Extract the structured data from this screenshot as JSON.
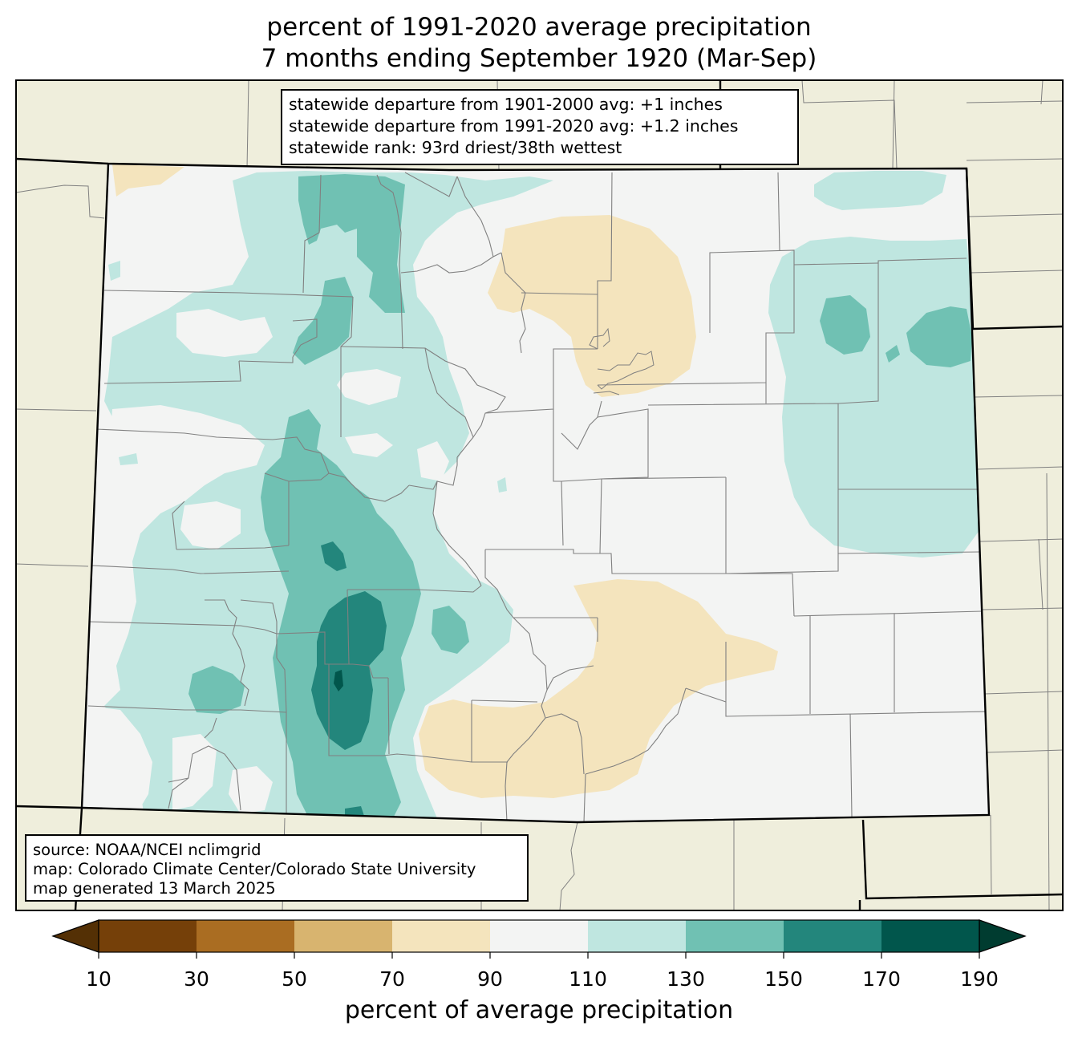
{
  "title": {
    "line1": "percent of 1991-2020 average precipitation",
    "line2": "7 months ending September 1920 (Mar-Sep)"
  },
  "stats": {
    "line1": "statewide departure from 1901-2000 avg: +1 inches",
    "line2": "statewide departure from 1991-2020 avg: +1.2 inches",
    "line3": "statewide rank: 93rd driest/38th wettest"
  },
  "source": {
    "line1": "source: NOAA/NCEI nclimgrid",
    "line2": "map: Colorado Climate Center/Colorado State University",
    "line3": "map generated 13 March 2025"
  },
  "colorbar": {
    "title": "percent of average precipitation",
    "ticks": [
      "10",
      "30",
      "50",
      "70",
      "90",
      "110",
      "130",
      "150",
      "170",
      "190"
    ],
    "bins": [
      {
        "range": "<10",
        "color": "#543005"
      },
      {
        "range": "10-30",
        "color": "#754009"
      },
      {
        "range": "30-50",
        "color": "#aa6d22"
      },
      {
        "range": "50-70",
        "color": "#d8b46f"
      },
      {
        "range": "70-90",
        "color": "#f4e4bd"
      },
      {
        "range": "90-110",
        "color": "#f3f4f3"
      },
      {
        "range": "110-130",
        "color": "#bfe6e0"
      },
      {
        "range": "130-150",
        "color": "#70c1b3"
      },
      {
        "range": "150-170",
        "color": "#23867c"
      },
      {
        "range": "170-190",
        "color": "#01564c"
      },
      {
        "range": ">190",
        "color": "#003c30"
      }
    ]
  },
  "map_colors": {
    "land_outside": "#efeedc",
    "state_border": "#000000",
    "county_border": "#808080"
  }
}
